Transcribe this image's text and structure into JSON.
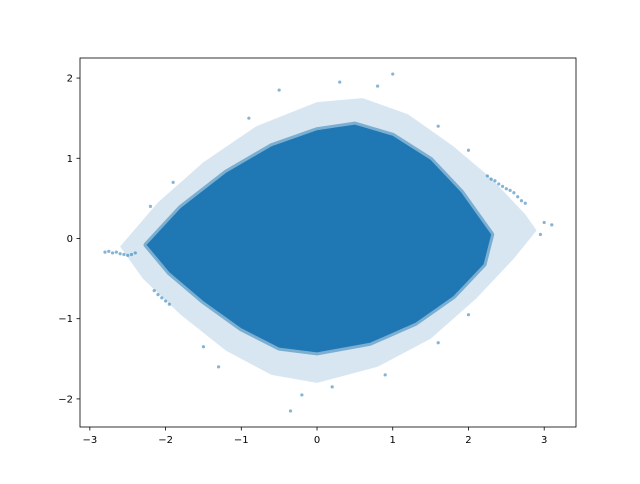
{
  "chart_data": {
    "type": "scatter",
    "title": "",
    "xlabel": "",
    "ylabel": "",
    "xlim": [
      -3.13,
      3.42
    ],
    "ylim": [
      -2.35,
      2.25
    ],
    "grid": false,
    "color": "#1f77b4",
    "xticks": [
      -3,
      -2,
      -1,
      0,
      1,
      2,
      3
    ],
    "yticks": [
      -2,
      -1,
      0,
      1,
      2
    ],
    "xtick_labels": [
      "−3",
      "−2",
      "−1",
      "0",
      "1",
      "2",
      "3"
    ],
    "ytick_labels": [
      "−2",
      "−1",
      "0",
      "1",
      "2"
    ],
    "dense_region_boundary": [
      [
        -2.25,
        -0.08
      ],
      [
        -1.8,
        0.38
      ],
      [
        -1.2,
        0.82
      ],
      [
        -0.6,
        1.15
      ],
      [
        0,
        1.35
      ],
      [
        0.5,
        1.42
      ],
      [
        1.0,
        1.28
      ],
      [
        1.5,
        0.98
      ],
      [
        1.9,
        0.58
      ],
      [
        2.3,
        0.05
      ],
      [
        2.2,
        -0.32
      ],
      [
        1.8,
        -0.72
      ],
      [
        1.3,
        -1.05
      ],
      [
        0.7,
        -1.3
      ],
      [
        0,
        -1.42
      ],
      [
        -0.5,
        -1.36
      ],
      [
        -1.0,
        -1.12
      ],
      [
        -1.5,
        -0.78
      ],
      [
        -1.95,
        -0.42
      ]
    ],
    "sparse_region_boundary": [
      [
        -2.6,
        -0.1
      ],
      [
        -2.1,
        0.45
      ],
      [
        -1.5,
        0.95
      ],
      [
        -0.8,
        1.4
      ],
      [
        0,
        1.7
      ],
      [
        0.6,
        1.75
      ],
      [
        1.2,
        1.55
      ],
      [
        1.8,
        1.15
      ],
      [
        2.3,
        0.75
      ],
      [
        2.75,
        0.3
      ],
      [
        2.9,
        0.1
      ],
      [
        2.6,
        -0.25
      ],
      [
        2.1,
        -0.75
      ],
      [
        1.5,
        -1.25
      ],
      [
        0.8,
        -1.6
      ],
      [
        0,
        -1.8
      ],
      [
        -0.6,
        -1.7
      ],
      [
        -1.2,
        -1.4
      ],
      [
        -1.8,
        -0.95
      ],
      [
        -2.3,
        -0.5
      ]
    ],
    "points": [
      [
        -2.8,
        -0.17
      ],
      [
        -2.75,
        -0.16
      ],
      [
        -2.7,
        -0.18
      ],
      [
        -2.65,
        -0.17
      ],
      [
        -2.6,
        -0.19
      ],
      [
        -2.55,
        -0.2
      ],
      [
        -2.5,
        -0.21
      ],
      [
        -2.45,
        -0.2
      ],
      [
        -2.4,
        -0.18
      ],
      [
        -2.15,
        -0.65
      ],
      [
        -2.1,
        -0.7
      ],
      [
        -2.05,
        -0.74
      ],
      [
        -2.0,
        -0.78
      ],
      [
        -1.95,
        -0.82
      ],
      [
        2.25,
        0.78
      ],
      [
        2.3,
        0.74
      ],
      [
        2.35,
        0.72
      ],
      [
        2.4,
        0.68
      ],
      [
        2.45,
        0.65
      ],
      [
        2.5,
        0.62
      ],
      [
        2.55,
        0.6
      ],
      [
        2.6,
        0.57
      ],
      [
        2.65,
        0.52
      ],
      [
        2.7,
        0.47
      ],
      [
        2.75,
        0.44
      ],
      [
        3.1,
        0.17
      ],
      [
        3.0,
        0.2
      ],
      [
        2.95,
        0.05
      ],
      [
        -0.5,
        1.85
      ],
      [
        0.3,
        1.95
      ],
      [
        0.8,
        1.9
      ],
      [
        1.0,
        2.05
      ],
      [
        -0.35,
        -2.15
      ],
      [
        -0.2,
        -1.95
      ],
      [
        0.2,
        -1.85
      ],
      [
        -1.3,
        -1.6
      ],
      [
        -1.5,
        -1.35
      ],
      [
        1.6,
        1.4
      ],
      [
        2.0,
        1.1
      ],
      [
        -2.2,
        0.4
      ],
      [
        -1.9,
        0.7
      ],
      [
        1.6,
        -1.3
      ],
      [
        2.0,
        -0.95
      ],
      [
        -0.9,
        1.5
      ],
      [
        0.9,
        -1.7
      ]
    ]
  }
}
